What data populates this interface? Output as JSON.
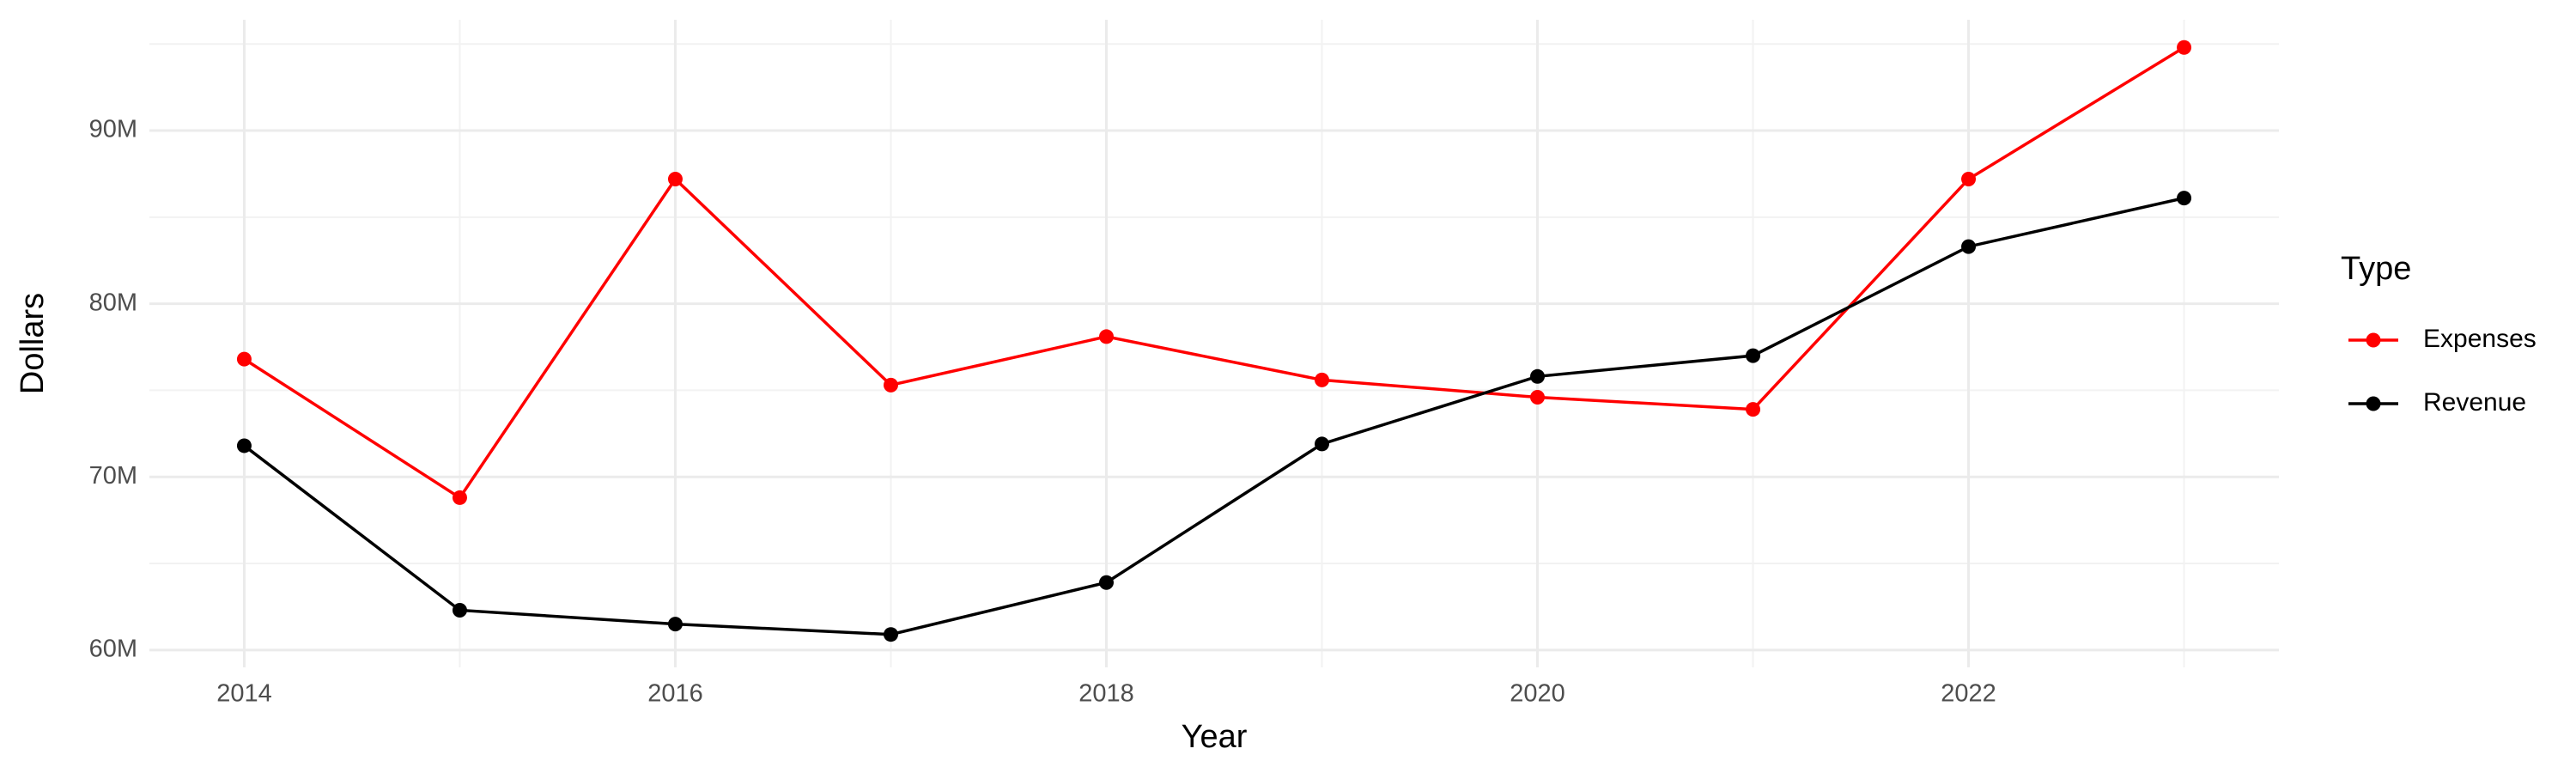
{
  "chart_data": {
    "type": "line",
    "x_label": "Year",
    "y_label": "Dollars",
    "legend_title": "Type",
    "x": [
      2014,
      2015,
      2016,
      2017,
      2018,
      2019,
      2020,
      2021,
      2022,
      2023
    ],
    "series": [
      {
        "name": "Expenses",
        "color": "#ff0000",
        "values": [
          76800000,
          68800000,
          87200000,
          75300000,
          78100000,
          75600000,
          74600000,
          73900000,
          87200000,
          94800000
        ]
      },
      {
        "name": "Revenue",
        "color": "#000000",
        "values": [
          71800000,
          62300000,
          61500000,
          60900000,
          63900000,
          71900000,
          75800000,
          77000000,
          83300000,
          86100000
        ]
      }
    ],
    "xlim": [
      2013.56,
      2023.44
    ],
    "xticks": [
      2014,
      2016,
      2018,
      2020,
      2022
    ],
    "x_minor_grid": [
      2015,
      2017,
      2019,
      2021,
      2023
    ],
    "ylim": [
      59000000,
      96400000
    ],
    "yticks": [
      {
        "value": 60000000,
        "label": "60M"
      },
      {
        "value": 70000000,
        "label": "70M"
      },
      {
        "value": 80000000,
        "label": "80M"
      },
      {
        "value": 90000000,
        "label": "90M"
      }
    ],
    "y_minor_grid": [
      65000000,
      75000000,
      85000000,
      95000000
    ],
    "grid": true,
    "legend": "right"
  }
}
